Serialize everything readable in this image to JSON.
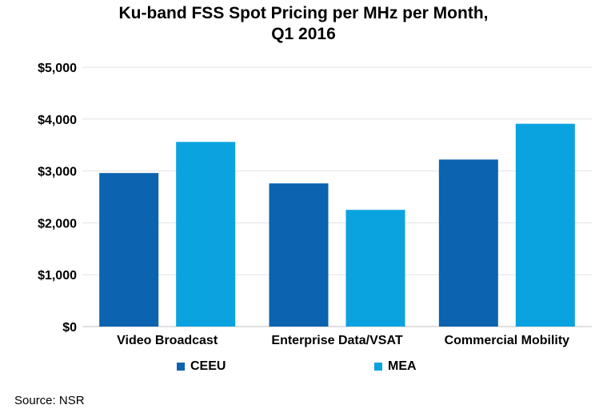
{
  "chart_data": {
    "type": "bar",
    "title_lines": [
      "Ku-band FSS Spot Pricing per MHz per Month,",
      "Q1 2016"
    ],
    "categories": [
      "Video Broadcast",
      "Enterprise Data/VSAT",
      "Commercial Mobility"
    ],
    "series": [
      {
        "name": "CEEU",
        "color": "#0c63b0",
        "values": [
          2960,
          2760,
          3220
        ]
      },
      {
        "name": "MEA",
        "color": "#0aa3e0",
        "values": [
          3560,
          2250,
          3910
        ]
      }
    ],
    "ylim": [
      0,
      5000
    ],
    "yticks": [
      0,
      1000,
      2000,
      3000,
      4000,
      5000
    ],
    "ytick_labels": [
      "$0",
      "$1,000",
      "$2,000",
      "$3,000",
      "$4,000",
      "$5,000"
    ],
    "grid": true,
    "legend_position": "bottom"
  },
  "source": "Source: NSR"
}
